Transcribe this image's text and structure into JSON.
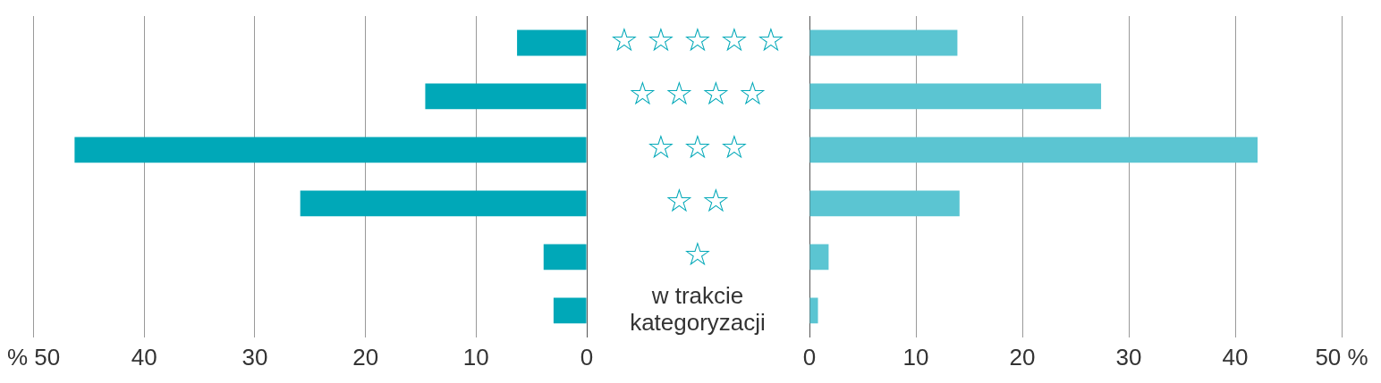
{
  "chart_data": [
    {
      "type": "bar",
      "orientation": "horizontal",
      "categories": [
        null,
        null,
        null,
        null,
        null,
        null
      ],
      "values": [
        6.3,
        14.6,
        46.3,
        25.9,
        3.9,
        3.0
      ],
      "color": "#00a8b8",
      "xlim": [
        50,
        0
      ],
      "xticks": [
        {
          "value": 50,
          "label": "% 50"
        },
        40,
        30,
        20,
        10,
        0
      ],
      "grid": "x",
      "tick_labels": "x"
    },
    {
      "type": "bar",
      "orientation": "horizontal",
      "categories": [
        "☆☆☆☆☆",
        "☆☆☆☆",
        "☆☆☆",
        "☆☆",
        "☆",
        "w trakcie kategoryzacji"
      ],
      "values": [
        13.9,
        27.4,
        42.1,
        14.1,
        1.8,
        0.8
      ],
      "color": "#5bc5d2",
      "xlim": [
        0,
        50
      ],
      "xticks": [
        0,
        10,
        20,
        30,
        40,
        {
          "value": 50,
          "label": "50 %"
        }
      ],
      "grid": "x"
    }
  ]
}
